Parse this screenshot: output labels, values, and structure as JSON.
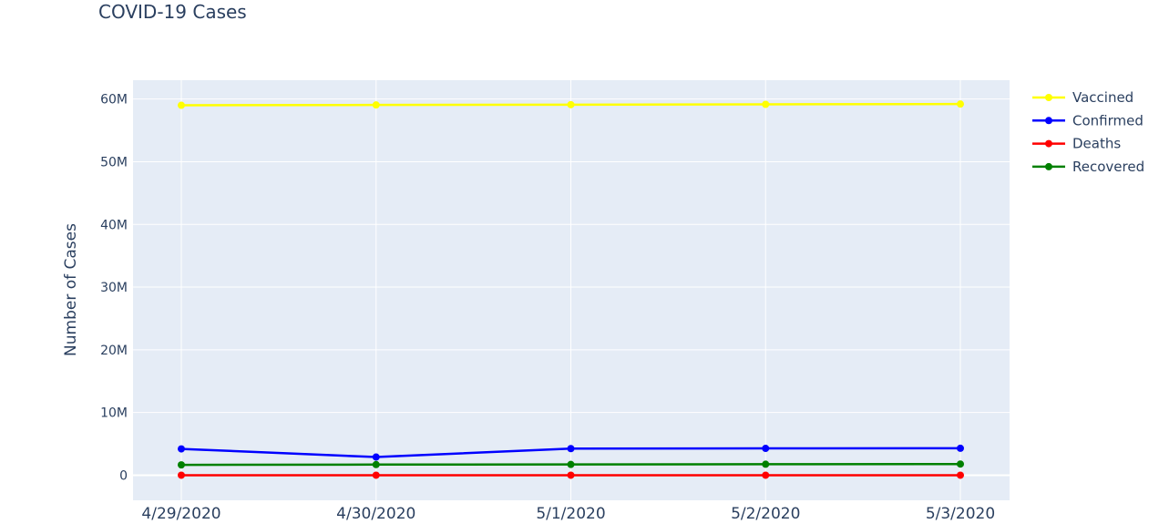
{
  "chart_data": {
    "type": "line",
    "title": "COVID-19 Cases",
    "xlabel": "",
    "ylabel": "Number of Cases",
    "categories": [
      "4/29/2020",
      "4/30/2020",
      "5/1/2020",
      "5/2/2020",
      "5/3/2020"
    ],
    "ylim": [
      -4000000,
      63000000
    ],
    "yticks": [
      0,
      10000000,
      20000000,
      30000000,
      40000000,
      50000000,
      60000000
    ],
    "ytick_labels": [
      "0",
      "10M",
      "20M",
      "30M",
      "40M",
      "50M",
      "60M"
    ],
    "grid": true,
    "legend_position": "top-right",
    "background_color": "#e5ecf6",
    "series": [
      {
        "name": "Vaccined",
        "color": "#ffff00",
        "values": [
          59000000,
          59050000,
          59100000,
          59150000,
          59200000
        ]
      },
      {
        "name": "Confirmed",
        "color": "#0000ff",
        "values": [
          4200000,
          2900000,
          4250000,
          4280000,
          4300000
        ]
      },
      {
        "name": "Deaths",
        "color": "#ff0000",
        "values": [
          0,
          0,
          0,
          0,
          0
        ]
      },
      {
        "name": "Recovered",
        "color": "#008000",
        "values": [
          1650000,
          1700000,
          1720000,
          1750000,
          1780000
        ]
      }
    ]
  }
}
